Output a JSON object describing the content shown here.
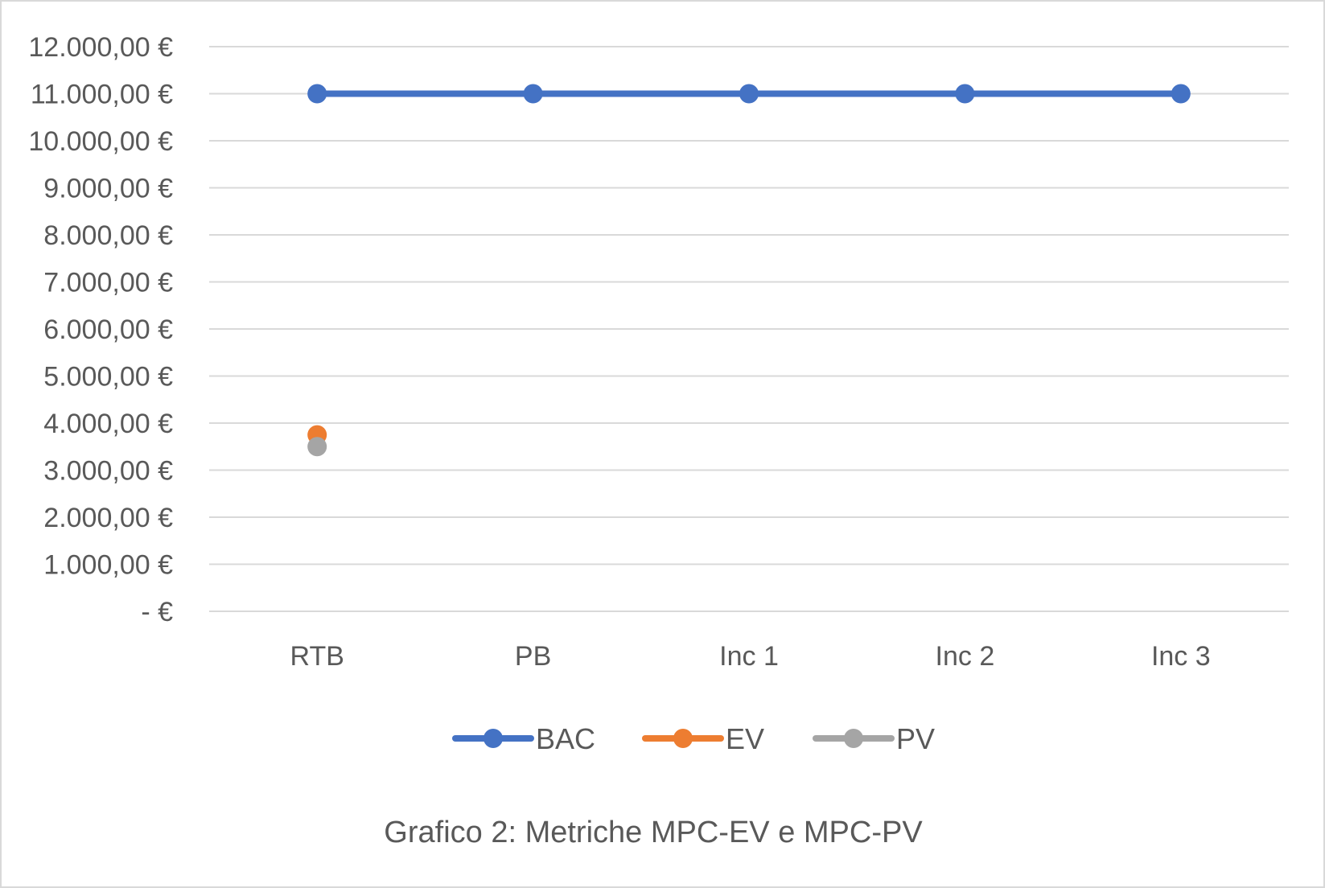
{
  "chart_data": {
    "type": "line",
    "caption": "Grafico 2: Metriche MPC-EV e MPC-PV",
    "categories": [
      "RTB",
      "PB",
      "Inc 1",
      "Inc 2",
      "Inc 3"
    ],
    "ylim": [
      0,
      12000
    ],
    "ytick_values": [
      0,
      1000,
      2000,
      3000,
      4000,
      5000,
      6000,
      7000,
      8000,
      9000,
      10000,
      11000,
      12000
    ],
    "ytick_labels": [
      "-   €",
      "1.000,00 €",
      "2.000,00 €",
      "3.000,00 €",
      "4.000,00 €",
      "5.000,00 €",
      "6.000,00 €",
      "7.000,00 €",
      "8.000,00 €",
      "9.000,00 €",
      "10.000,00 €",
      "11.000,00 €",
      "12.000,00 €"
    ],
    "grid": true,
    "legend_position": "bottom",
    "series": [
      {
        "name": "BAC",
        "color": "#4472C4",
        "values": [
          11000,
          11000,
          11000,
          11000,
          11000
        ]
      },
      {
        "name": "EV",
        "color": "#ED7D31",
        "values": [
          3750,
          null,
          null,
          null,
          null
        ]
      },
      {
        "name": "PV",
        "color": "#A5A5A5",
        "values": [
          3500,
          null,
          null,
          null,
          null
        ]
      }
    ]
  }
}
